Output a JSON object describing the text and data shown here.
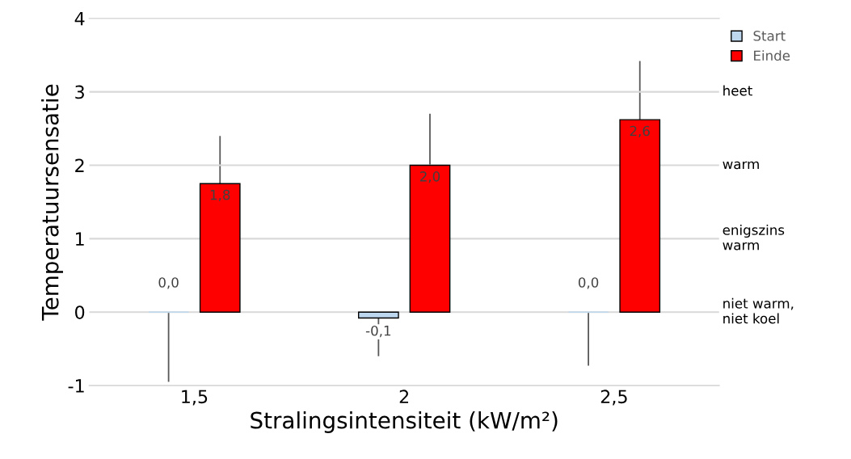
{
  "chart_data": {
    "type": "bar",
    "xlabel": "Stralingsintensiteit (kW/m²)",
    "ylabel": "Temperatuursensatie",
    "categories": [
      "1,5",
      "2",
      "2,5"
    ],
    "series": [
      {
        "name": "Start",
        "color": "#bdd7ee",
        "values": [
          0.0,
          -0.08,
          0.0
        ],
        "errors": [
          [
            -0.95,
            0.0
          ],
          [
            -0.6,
            -0.08
          ],
          [
            -0.73,
            0.0
          ]
        ],
        "value_labels": [
          "0,0",
          "-0,1",
          "0,0"
        ]
      },
      {
        "name": "Einde",
        "color": "#ff0000",
        "values": [
          1.75,
          2.0,
          2.62
        ],
        "errors": [
          [
            1.75,
            2.4
          ],
          [
            2.0,
            2.7
          ],
          [
            2.62,
            3.42
          ]
        ],
        "value_labels": [
          "1,8",
          "2,0",
          "2,6"
        ]
      }
    ],
    "ylim": [
      -1,
      4
    ],
    "yticks": [
      -1,
      0,
      1,
      2,
      3,
      4
    ],
    "ref_lines": [
      {
        "axis": "y",
        "value": 0,
        "label": "niet warm,\nniet koel",
        "color": "#d9d9d9"
      },
      {
        "axis": "y",
        "value": 1,
        "label": "enigszins\nwarm",
        "color": "#d9d9d9"
      },
      {
        "axis": "y",
        "value": 2,
        "label": "warm",
        "color": "#d9d9d9"
      },
      {
        "axis": "y",
        "value": 3,
        "label": "heet",
        "color": "#d9d9d9"
      }
    ],
    "legend": "top right"
  }
}
